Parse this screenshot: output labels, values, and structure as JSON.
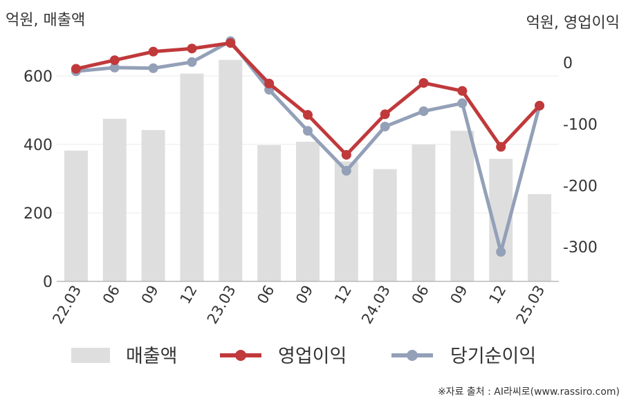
{
  "chart_data": {
    "type": "bar",
    "left_unit_label": "억원, 매출액",
    "right_unit_label": "억원, 영업이익",
    "categories": [
      "22.03",
      "06",
      "09",
      "12",
      "23.03",
      "06",
      "09",
      "12",
      "24.03",
      "06",
      "09",
      "12",
      "25.03"
    ],
    "bar_series": {
      "name": "매출액",
      "color": "#dedede",
      "axis": "left",
      "values": [
        382,
        475,
        442,
        607,
        647,
        398,
        408,
        350,
        328,
        400,
        440,
        358,
        255
      ]
    },
    "line_series": [
      {
        "name": "영업이익",
        "color": "#c0393b",
        "axis": "right",
        "values": [
          -10,
          4,
          18,
          23,
          32,
          -34,
          -85,
          -150,
          -84,
          -33,
          -46,
          -137,
          -70
        ]
      },
      {
        "name": "당기순이익",
        "color": "#93a0b8",
        "axis": "right",
        "values": [
          -14,
          -8,
          -9,
          1,
          35,
          -44,
          -111,
          -176,
          -104,
          -79,
          -66,
          -308,
          -70
        ]
      }
    ],
    "left_axis": {
      "ylim": [
        0,
        725
      ],
      "ticks": [
        0,
        200,
        400,
        600
      ]
    },
    "right_axis": {
      "ylim": [
        -356,
        48
      ],
      "ticks": [
        0,
        -100,
        -200,
        -300
      ]
    },
    "grid": true,
    "legend_position": "bottom"
  },
  "source_text": "※자료 출처 : AI라씨로(www.rassiro.com)"
}
